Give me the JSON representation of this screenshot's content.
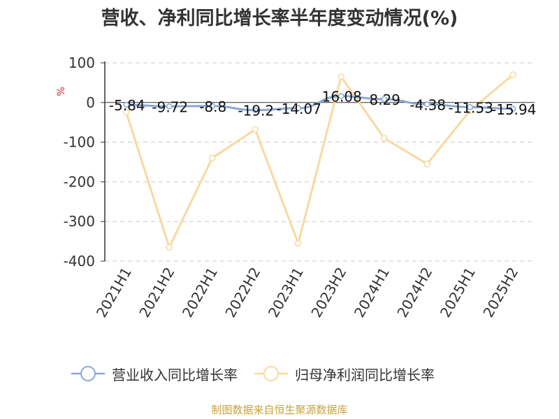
{
  "chart_data": {
    "type": "line",
    "title": "营收、净利同比增长率半年度变动情况(%)",
    "ylabel": "%",
    "ylim": [
      -400,
      100
    ],
    "yticks": [
      100,
      0,
      -100,
      -200,
      -300,
      -400
    ],
    "categories": [
      "2021H1",
      "2021H2",
      "2022H1",
      "2022H2",
      "2023H1",
      "2023H2",
      "2024H1",
      "2024H2",
      "2025H1",
      "2025H2"
    ],
    "series": [
      {
        "name": "营业收入同比增长率",
        "color": "#8aa8d6",
        "values": [
          -5.84,
          -9.72,
          -8.8,
          -19.2,
          -14.07,
          16.08,
          8.29,
          -4.38,
          -11.53,
          -15.94
        ],
        "data_labels": [
          "-5.84",
          "-9.72",
          "-8.8",
          "-19.2",
          "-14.07",
          "16.08",
          "8.29",
          "-4.38",
          "-11.53",
          "-15.94"
        ]
      },
      {
        "name": "归母净利润同比增长率",
        "color": "#f8d9a0",
        "values": [
          -25,
          -365,
          -140,
          -68,
          -355,
          65,
          -90,
          -155,
          -20,
          70
        ]
      }
    ],
    "grid": true,
    "legend_position": "bottom"
  },
  "source_note": "制图数据来自恒生聚源数据库"
}
